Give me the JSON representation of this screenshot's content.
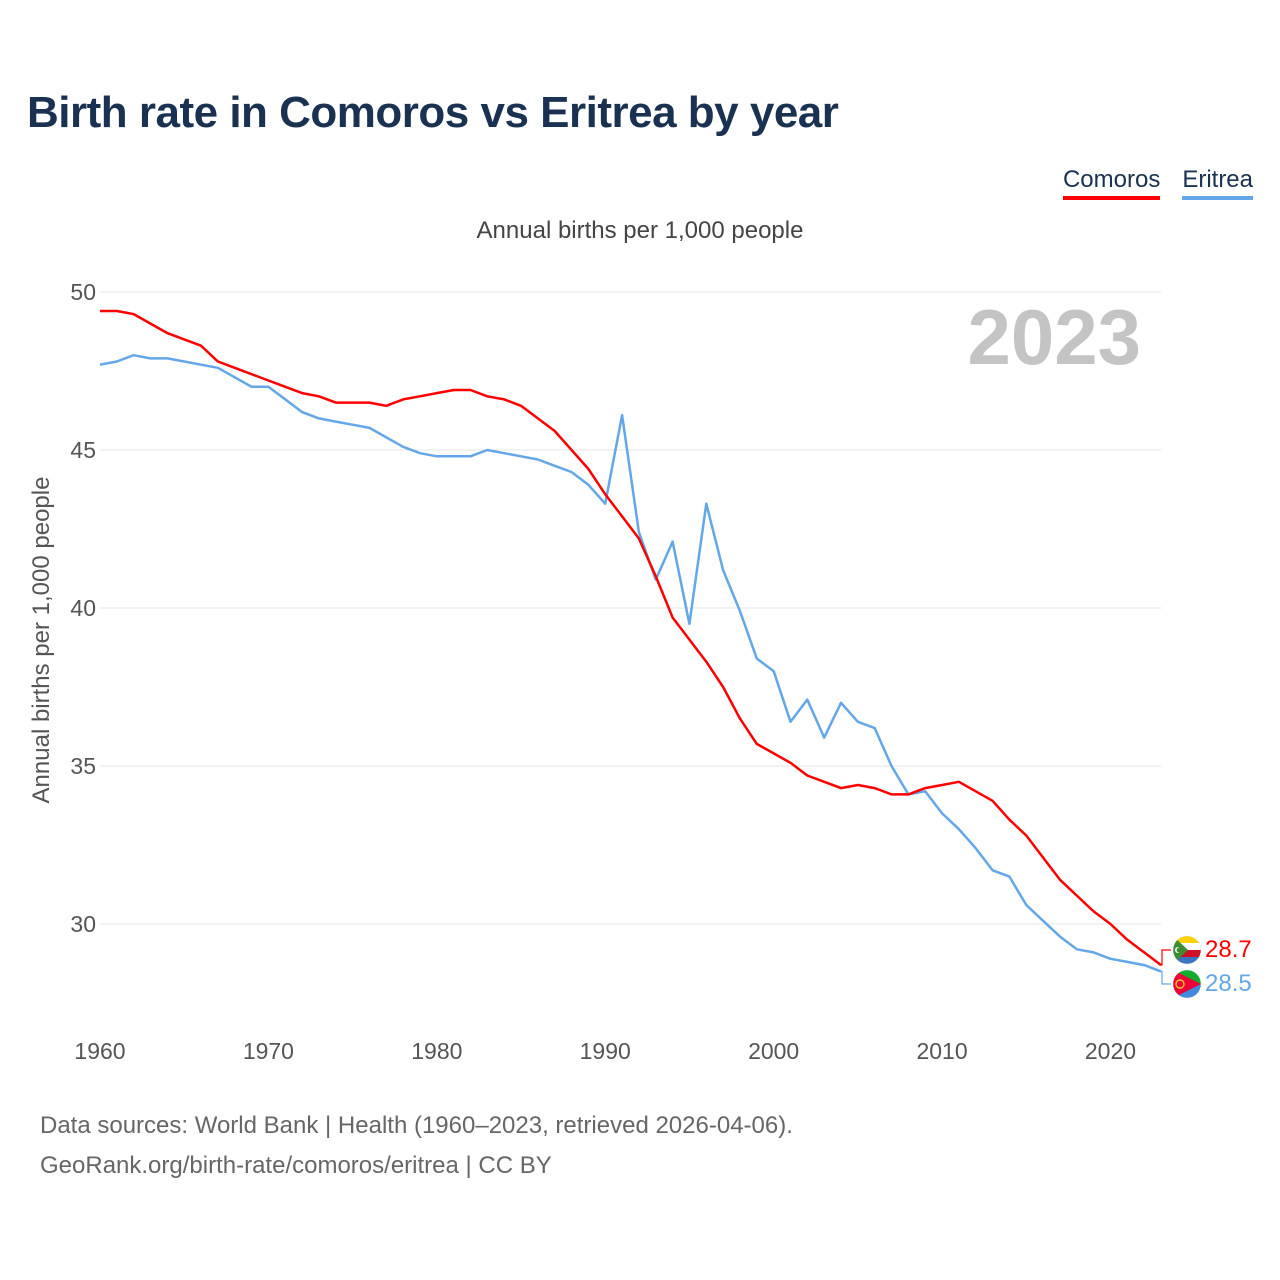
{
  "title": "Birth rate in Comoros vs Eritrea by year",
  "subtitle": "Annual births per 1,000 people",
  "year_watermark": "2023",
  "source_line1": "Data sources: World Bank | Health (1960–2023, retrieved 2026-04-06).",
  "source_line2": "GeoRank.org/birth-rate/comoros/eritrea | CC BY",
  "legend": [
    {
      "name": "Comoros",
      "color": "#ff0000"
    },
    {
      "name": "Eritrea",
      "color": "#63a7e8"
    }
  ],
  "chart_data": {
    "type": "line",
    "title": "Birth rate in Comoros vs Eritrea by year",
    "ylabel": "Annual births per 1,000 people",
    "xlabel": "",
    "xlim": [
      1960,
      2023
    ],
    "ylim": [
      27.5,
      50
    ],
    "xticks": [
      1960,
      1970,
      1980,
      1990,
      2000,
      2010,
      2020
    ],
    "yticks": [
      30,
      35,
      40,
      45,
      50
    ],
    "grid": true,
    "x": [
      1960,
      1961,
      1962,
      1963,
      1964,
      1965,
      1966,
      1967,
      1968,
      1969,
      1970,
      1971,
      1972,
      1973,
      1974,
      1975,
      1976,
      1977,
      1978,
      1979,
      1980,
      1981,
      1982,
      1983,
      1984,
      1985,
      1986,
      1987,
      1988,
      1989,
      1990,
      1991,
      1992,
      1993,
      1994,
      1995,
      1996,
      1997,
      1998,
      1999,
      2000,
      2001,
      2002,
      2003,
      2004,
      2005,
      2006,
      2007,
      2008,
      2009,
      2010,
      2011,
      2012,
      2013,
      2014,
      2015,
      2016,
      2017,
      2018,
      2019,
      2020,
      2021,
      2022,
      2023
    ],
    "series": [
      {
        "name": "Comoros",
        "color": "#ff0000",
        "end_label": "28.7",
        "values": [
          49.4,
          49.4,
          49.3,
          49.0,
          48.7,
          48.5,
          48.3,
          47.8,
          47.6,
          47.4,
          47.2,
          47.0,
          46.8,
          46.7,
          46.5,
          46.5,
          46.5,
          46.4,
          46.6,
          46.7,
          46.8,
          46.9,
          46.9,
          46.7,
          46.6,
          46.4,
          46.0,
          45.6,
          45.0,
          44.4,
          43.6,
          42.9,
          42.2,
          41.0,
          39.7,
          39.0,
          38.3,
          37.5,
          36.5,
          35.7,
          35.4,
          35.1,
          34.7,
          34.5,
          34.3,
          34.4,
          34.3,
          34.1,
          34.1,
          34.3,
          34.4,
          34.5,
          34.2,
          33.9,
          33.3,
          32.8,
          32.1,
          31.4,
          30.9,
          30.4,
          30.0,
          29.5,
          29.1,
          28.7
        ]
      },
      {
        "name": "Eritrea",
        "color": "#63a7e8",
        "end_label": "28.5",
        "values": [
          47.7,
          47.8,
          48.0,
          47.9,
          47.9,
          47.8,
          47.7,
          47.6,
          47.3,
          47.0,
          47.0,
          46.6,
          46.2,
          46.0,
          45.9,
          45.8,
          45.7,
          45.4,
          45.1,
          44.9,
          44.8,
          44.8,
          44.8,
          45.0,
          44.9,
          44.8,
          44.7,
          44.5,
          44.3,
          43.9,
          43.3,
          46.1,
          42.4,
          40.9,
          42.1,
          39.5,
          43.3,
          41.2,
          39.9,
          38.4,
          38.0,
          36.4,
          37.1,
          35.9,
          37.0,
          36.4,
          36.2,
          35.0,
          34.1,
          34.2,
          33.5,
          33.0,
          32.4,
          31.7,
          31.5,
          30.6,
          30.1,
          29.6,
          29.2,
          29.1,
          28.9,
          28.8,
          28.7,
          28.5
        ]
      }
    ]
  }
}
